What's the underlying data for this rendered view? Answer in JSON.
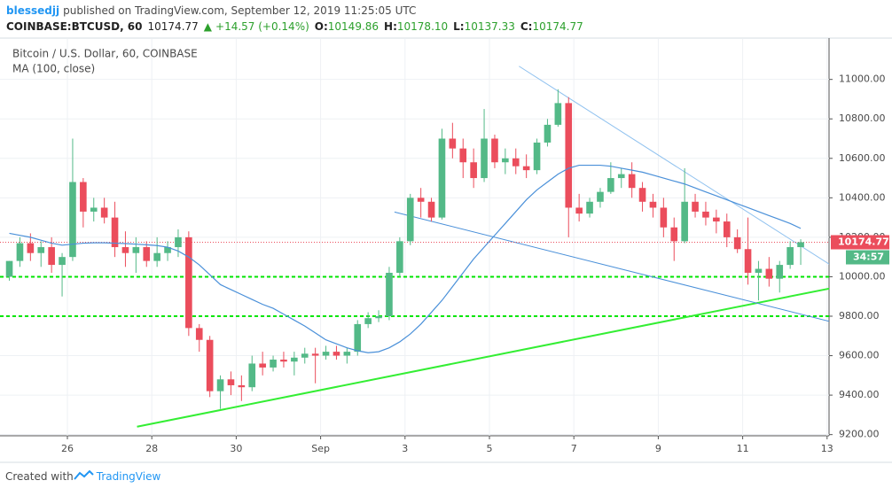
{
  "header": {
    "author": "blessedjj",
    "published": "published on TradingView.com, September 12, 2019 11:25:05 UTC",
    "symbol": "COINBASE:BTCUSD, 60",
    "last": "10174.77",
    "arrow": "▲",
    "change": "+14.57 (+0.14%)",
    "ohlc": [
      {
        "label": "O:",
        "value": "10149.86"
      },
      {
        "label": "H:",
        "value": "10178.10"
      },
      {
        "label": "L:",
        "value": "10137.33"
      },
      {
        "label": "C:",
        "value": "10174.77"
      }
    ]
  },
  "chart_data": {
    "type": "candlestick",
    "categories": [
      null,
      null,
      null,
      null,
      null,
      null,
      "26",
      null,
      null,
      null,
      null,
      null,
      null,
      null,
      "28",
      null,
      null,
      null,
      null,
      null,
      null,
      null,
      "30",
      null,
      null,
      null,
      null,
      null,
      null,
      null,
      "Sep",
      null,
      null,
      null,
      null,
      null,
      null,
      null,
      "3",
      null,
      null,
      null,
      null,
      null,
      null,
      null,
      "5",
      null,
      null,
      null,
      null,
      null,
      null,
      null,
      "7",
      null,
      null,
      null,
      null,
      null,
      null,
      null,
      "9",
      null,
      null,
      null,
      null,
      null,
      null,
      null,
      "11",
      null,
      null,
      null,
      null,
      null,
      null,
      null,
      "13"
    ],
    "series": [
      {
        "name": "Bitcoin / U.S. Dollar, 60, COINBASE",
        "up_color": "#53b987",
        "down_color": "#eb4d5c",
        "open": [
          10000,
          10080,
          10170,
          10120,
          10150,
          10060,
          10100,
          10480,
          10330,
          10350,
          10300,
          10150,
          10120,
          10150,
          10080,
          10120,
          10150,
          10200,
          9740,
          9680,
          9420,
          9480,
          9450,
          9440,
          9560,
          9540,
          9580,
          9570,
          9590,
          9610,
          9600,
          9620,
          9600,
          9620,
          9760,
          9790,
          9800,
          10020,
          10180,
          10400,
          10380,
          10300,
          10700,
          10650,
          10580,
          10500,
          10700,
          10580,
          10600,
          10560,
          10540,
          10680,
          10770,
          10880,
          10350,
          10320,
          10380,
          10430,
          10500,
          10520,
          10450,
          10380,
          10350,
          10250,
          10180,
          10380,
          10330,
          10300,
          10280,
          10200,
          10140,
          10020,
          10040,
          9990,
          10060,
          10150,
          null,
          null,
          null
        ],
        "high": [
          10080,
          10200,
          10220,
          10180,
          10200,
          10120,
          10700,
          10500,
          10400,
          10400,
          10380,
          10230,
          10200,
          10180,
          10200,
          10180,
          10240,
          10230,
          9760,
          9700,
          9500,
          9520,
          9500,
          9600,
          9620,
          9600,
          9620,
          9620,
          9640,
          9640,
          9650,
          9650,
          9640,
          9780,
          9820,
          9830,
          10050,
          10200,
          10420,
          10450,
          10400,
          10750,
          10780,
          10700,
          10650,
          10850,
          10720,
          10650,
          10650,
          10620,
          10700,
          10800,
          10950,
          10910,
          10420,
          10400,
          10450,
          10580,
          10550,
          10580,
          10480,
          10420,
          10400,
          10300,
          10550,
          10420,
          10380,
          10340,
          10320,
          10240,
          10300,
          10080,
          10100,
          10080,
          10180,
          10190,
          null,
          null,
          null
        ],
        "low": [
          9980,
          10050,
          10080,
          10050,
          10020,
          9900,
          10080,
          10250,
          10280,
          10270,
          10100,
          10050,
          10020,
          10050,
          10050,
          10080,
          10100,
          9700,
          9620,
          9390,
          9330,
          9400,
          9370,
          9420,
          9500,
          9520,
          9540,
          9500,
          9560,
          9460,
          9580,
          9580,
          9560,
          9600,
          9740,
          9770,
          9780,
          10000,
          10160,
          10300,
          10280,
          10290,
          10600,
          10500,
          10450,
          10480,
          10550,
          10520,
          10520,
          10500,
          10520,
          10660,
          10760,
          10200,
          10280,
          10300,
          10350,
          10420,
          10450,
          10400,
          10330,
          10300,
          10200,
          10080,
          10170,
          10300,
          10260,
          10220,
          10150,
          10120,
          9960,
          9880,
          9950,
          9920,
          10040,
          10060,
          null,
          null,
          null
        ],
        "close": [
          10080,
          10170,
          10120,
          10150,
          10060,
          10100,
          10480,
          10330,
          10350,
          10300,
          10150,
          10120,
          10150,
          10080,
          10120,
          10150,
          10200,
          9740,
          9680,
          9420,
          9480,
          9450,
          9440,
          9560,
          9540,
          9580,
          9570,
          9590,
          9610,
          9600,
          9620,
          9600,
          9620,
          9760,
          9790,
          9800,
          10020,
          10180,
          10400,
          10380,
          10300,
          10700,
          10650,
          10580,
          10500,
          10700,
          10580,
          10600,
          10560,
          10540,
          10680,
          10770,
          10880,
          10350,
          10320,
          10380,
          10430,
          10500,
          10520,
          10450,
          10380,
          10350,
          10250,
          10180,
          10380,
          10330,
          10300,
          10280,
          10200,
          10140,
          10020,
          10040,
          9990,
          10060,
          10150,
          10175,
          null,
          null,
          null
        ]
      },
      {
        "name": "MA (100, close)",
        "color": "#4a90d9",
        "values": [
          10220,
          10210,
          10200,
          10185,
          10170,
          10160,
          10165,
          10170,
          10172,
          10172,
          10170,
          10168,
          10165,
          10162,
          10158,
          10150,
          10130,
          10100,
          10060,
          10010,
          9960,
          9935,
          9910,
          9885,
          9860,
          9840,
          9810,
          9780,
          9750,
          9715,
          9680,
          9660,
          9640,
          9625,
          9615,
          9620,
          9640,
          9670,
          9710,
          9760,
          9820,
          9880,
          9950,
          10020,
          10090,
          10150,
          10210,
          10270,
          10330,
          10390,
          10440,
          10480,
          10520,
          10550,
          10565,
          10565,
          10565,
          10560,
          10550,
          10540,
          10530,
          10515,
          10500,
          10485,
          10470,
          10450,
          10430,
          10410,
          10390,
          10370,
          10350,
          10330,
          10310,
          10290,
          10270,
          10245,
          null,
          null,
          null
        ]
      }
    ],
    "ylim": [
      9194,
      11205
    ],
    "yticks": [
      {
        "value": 9200,
        "label": "9200.00"
      },
      {
        "value": 9400,
        "label": "9400.00"
      },
      {
        "value": 9600,
        "label": "9600.00"
      },
      {
        "value": 9800,
        "label": "9800.00"
      },
      {
        "value": 10000,
        "label": "10000.00"
      },
      {
        "value": 10200,
        "label": "10200.00"
      },
      {
        "value": 10400,
        "label": "10400.00"
      },
      {
        "value": 10600,
        "label": "10600.00"
      },
      {
        "value": 10800,
        "label": "10800.00"
      },
      {
        "value": 11000,
        "label": "11000.00"
      }
    ],
    "grid": true,
    "last_price": 10174.77,
    "last_price_color": "#eb4d5c",
    "countdown": "34:57",
    "countdown_color": "#53b987",
    "hlines": [
      {
        "value": 10000,
        "color": "#00e600"
      },
      {
        "value": 9800,
        "color": "#00e600"
      }
    ],
    "trendlines": [
      {
        "x": [
          12.6,
          78.2
        ],
        "y": [
          9240,
          9940
        ],
        "color": "#33ee33"
      },
      {
        "x": [
          37.0,
          78.2
        ],
        "y": [
          10328,
          9774
        ],
        "color": "#4a90d9"
      },
      {
        "x": [
          48.8,
          78.2
        ],
        "y": [
          11067,
          10064
        ],
        "color": "#8fc1ef"
      }
    ]
  },
  "footer": {
    "created": "Created with",
    "brand": "TradingView"
  }
}
